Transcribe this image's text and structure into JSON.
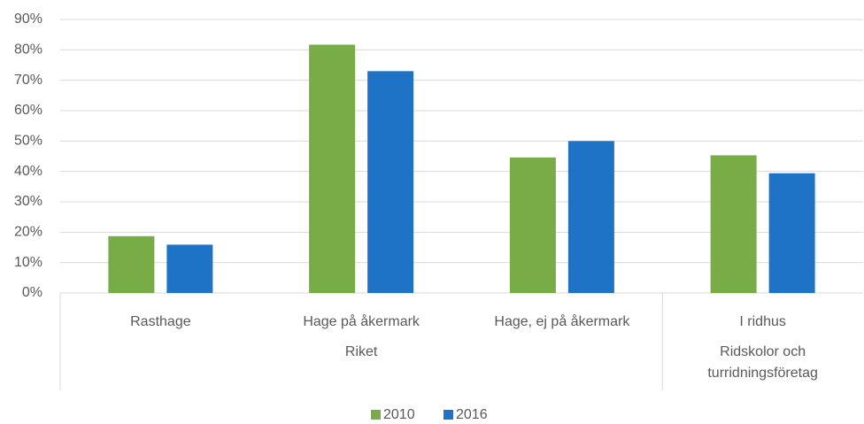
{
  "chart_data": {
    "type": "bar",
    "categories": [
      "Rasthage",
      "Hage på åkermark",
      "Hage, ej på åkermark",
      "I ridhus"
    ],
    "groups": [
      {
        "label": "Riket",
        "count": 3
      },
      {
        "label": "Ridskolor och turridningsföretag",
        "count": 1
      }
    ],
    "series": [
      {
        "name": "2010",
        "color": "#77ac46",
        "values": [
          18.7,
          81.7,
          44.6,
          45.3
        ]
      },
      {
        "name": "2016",
        "color": "#1f73c7",
        "values": [
          15.9,
          73.0,
          50.0,
          39.4
        ]
      }
    ],
    "ylim": [
      0,
      90
    ],
    "yticks": [
      {
        "value": 0,
        "label": "0%"
      },
      {
        "value": 10,
        "label": "10%"
      },
      {
        "value": 20,
        "label": "20%"
      },
      {
        "value": 30,
        "label": "30%"
      },
      {
        "value": 40,
        "label": "40%"
      },
      {
        "value": 50,
        "label": "50%"
      },
      {
        "value": 60,
        "label": "60%"
      },
      {
        "value": 70,
        "label": "70%"
      },
      {
        "value": 80,
        "label": "80%"
      },
      {
        "value": 90,
        "label": "90%"
      }
    ],
    "grid": true,
    "legend": "bottom"
  }
}
